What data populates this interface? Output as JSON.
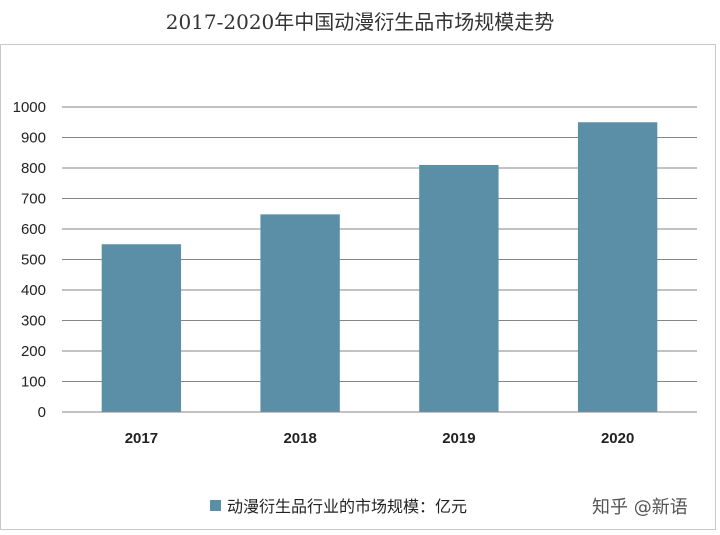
{
  "chart_data": {
    "type": "bar",
    "title": "2017-2020年中国动漫衍生品市场规模走势",
    "categories": [
      "2017",
      "2018",
      "2019",
      "2020"
    ],
    "series": [
      {
        "name": "动漫衍生品行业的市场规模：亿元",
        "values": [
          550,
          648,
          810,
          950
        ]
      }
    ],
    "yticks": [
      0,
      100,
      200,
      300,
      400,
      500,
      600,
      700,
      800,
      900,
      1000
    ],
    "ylim": [
      0,
      1000
    ],
    "grid": true,
    "legend_position": "bottom",
    "bar_color": "#5b8fa8"
  },
  "watermark": "知乎 @新语"
}
